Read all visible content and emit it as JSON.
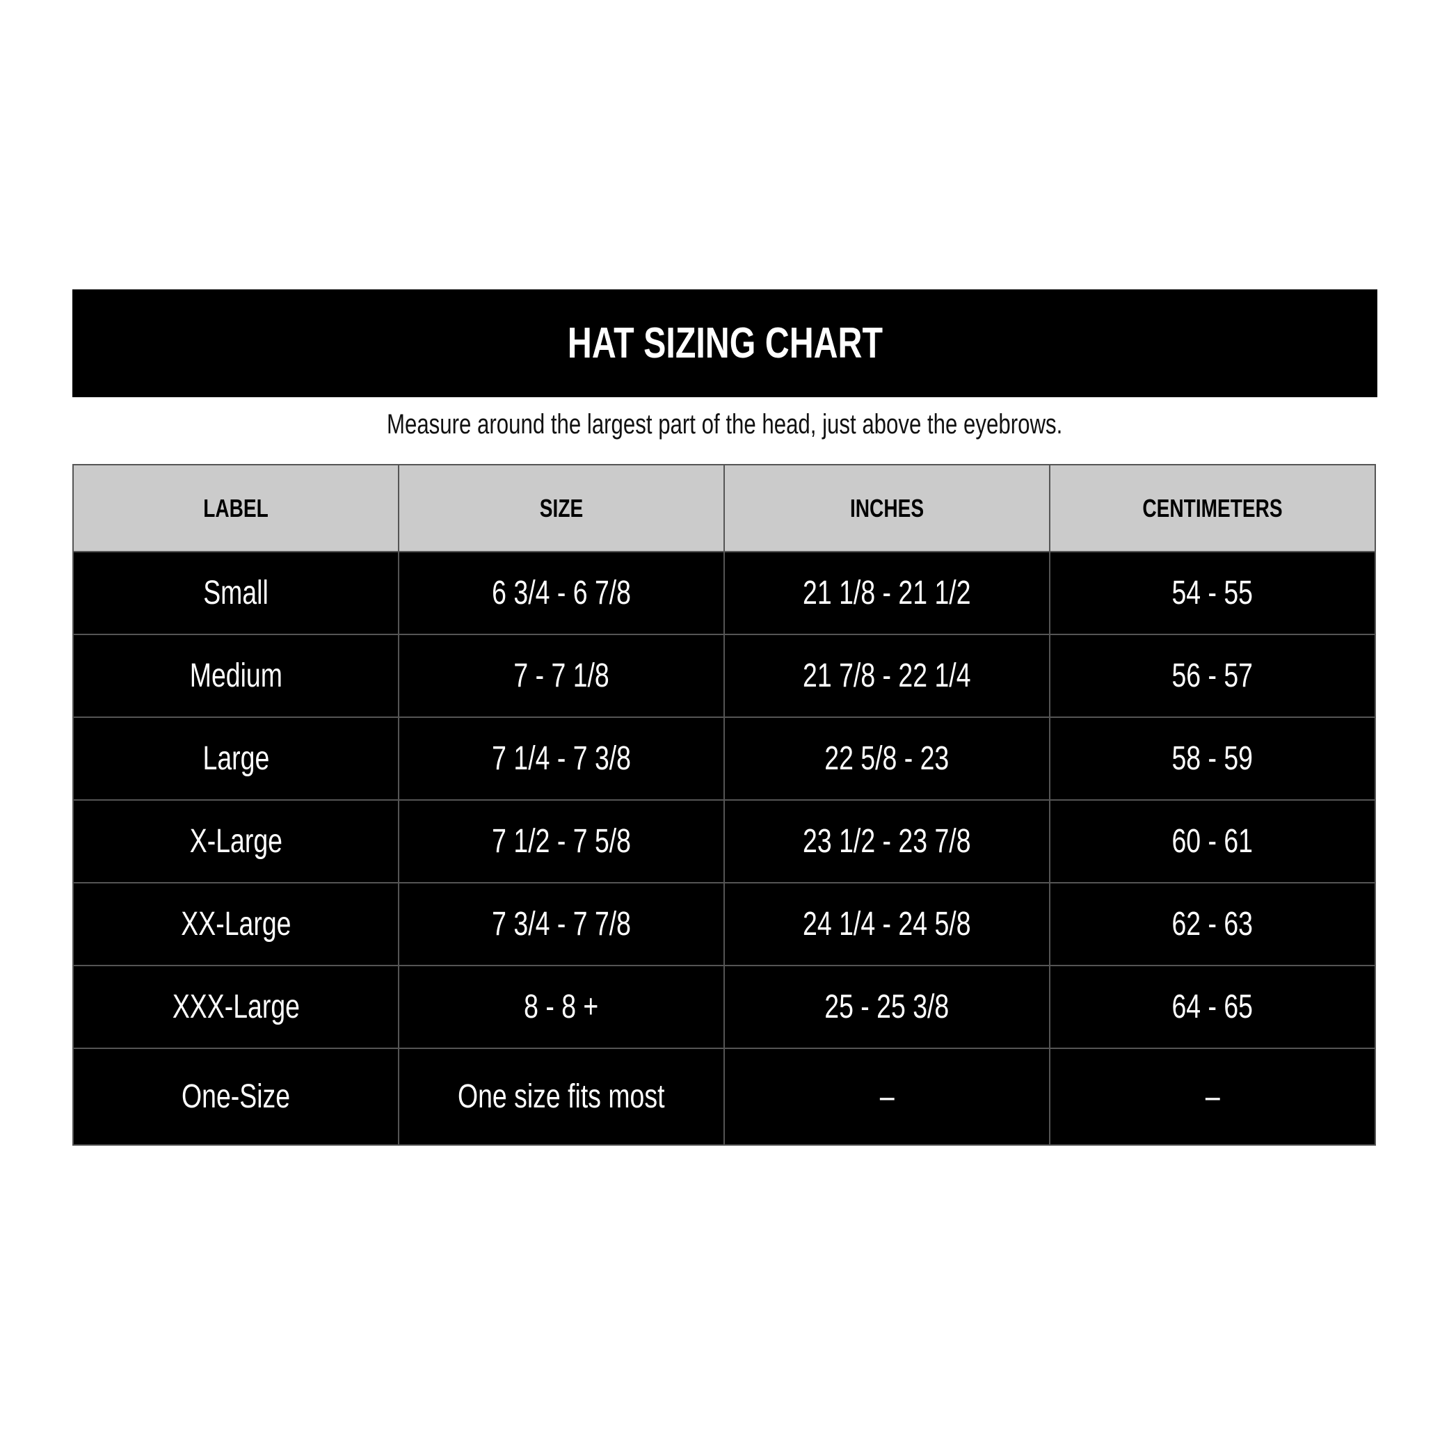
{
  "title": "HAT SIZING CHART",
  "subtitle": "Measure around the largest part of the head, just above the eyebrows.",
  "columns": [
    "LABEL",
    "SIZE",
    "INCHES",
    "CENTIMETERS"
  ],
  "rows": [
    [
      "Small",
      "6 3/4 - 6 7/8",
      "21 1/8 - 21 1/2",
      "54 - 55"
    ],
    [
      "Medium",
      "7 - 7 1/8",
      "21 7/8 - 22 1/4",
      "56 - 57"
    ],
    [
      "Large",
      "7 1/4 - 7 3/8",
      "22 5/8 - 23",
      "58 - 59"
    ],
    [
      "X-Large",
      "7 1/2 - 7 5/8",
      "23 1/2 - 23 7/8",
      "60 - 61"
    ],
    [
      "XX-Large",
      "7 3/4 - 7 7/8",
      "24 1/4 - 24 5/8",
      "62 - 63"
    ],
    [
      "XXX-Large",
      "8 - 8 +",
      "25 - 25 3/8",
      "64 - 65"
    ],
    [
      "One-Size",
      "One size fits most",
      "–",
      "–"
    ]
  ],
  "colors": {
    "header_bg": "#cbcbcb",
    "row_bg": "#000000",
    "row_text": "#ffffff"
  }
}
